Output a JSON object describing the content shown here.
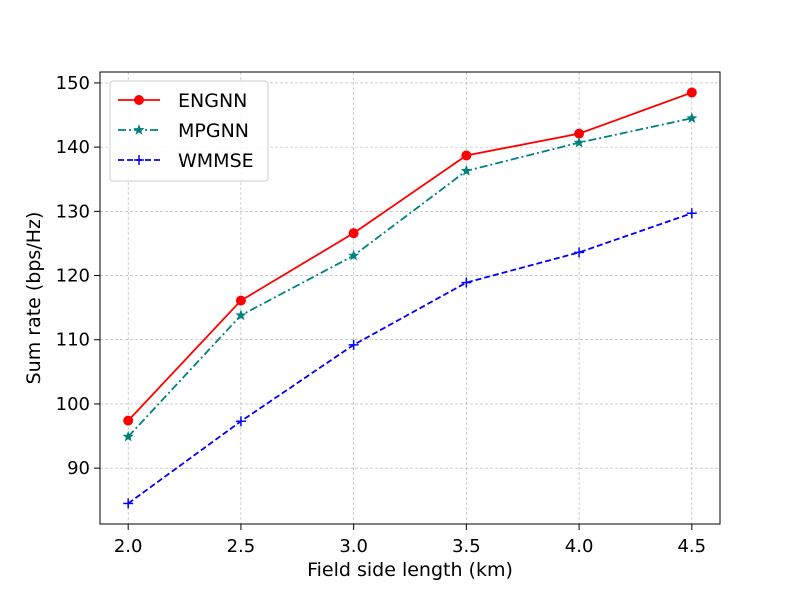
{
  "chart_data": {
    "type": "line",
    "title": "",
    "xlabel": "Field side length (km)",
    "ylabel": "Sum rate (bps/Hz)",
    "x": [
      2.0,
      2.5,
      3.0,
      3.5,
      4.0,
      4.5
    ],
    "xlim": [
      1.875,
      4.625
    ],
    "ylim": [
      81.3,
      151.7
    ],
    "x_ticks": [
      "2.0",
      "2.5",
      "3.0",
      "3.5",
      "4.0",
      "4.5"
    ],
    "x_tick_values": [
      2.0,
      2.5,
      3.0,
      3.5,
      4.0,
      4.5
    ],
    "y_ticks": [
      "90",
      "100",
      "110",
      "120",
      "130",
      "140",
      "150"
    ],
    "y_tick_values": [
      90,
      100,
      110,
      120,
      130,
      140,
      150
    ],
    "grid": true,
    "legend_position": "top-left",
    "series": [
      {
        "name": "ENGNN",
        "values": [
          97.4,
          116.1,
          126.6,
          138.7,
          142.1,
          148.5
        ],
        "color": "#ff0000",
        "line_style": "solid",
        "marker": "circle"
      },
      {
        "name": "MPGNN",
        "values": [
          94.9,
          113.8,
          123.1,
          136.3,
          140.7,
          144.5
        ],
        "color": "#008080",
        "line_style": "dashdot",
        "marker": "star"
      },
      {
        "name": "WMMSE",
        "values": [
          84.5,
          97.3,
          109.2,
          118.9,
          123.6,
          129.7
        ],
        "color": "#0000ff",
        "line_style": "dashed",
        "marker": "plus"
      }
    ]
  }
}
